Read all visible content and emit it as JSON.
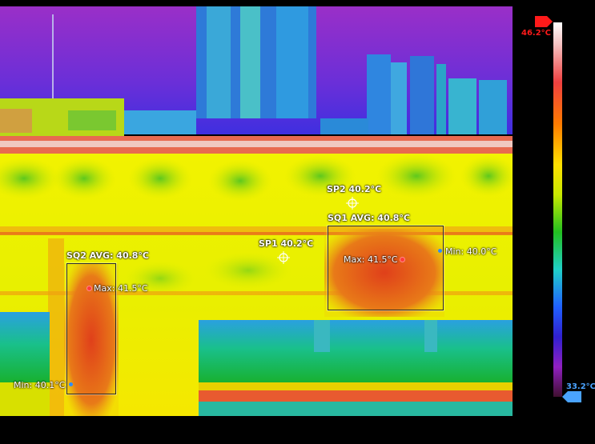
{
  "thermal": {
    "spots": [
      {
        "label": "SP1 40.2°C"
      },
      {
        "label": "SP2 40.2°C"
      }
    ],
    "areas": [
      {
        "label": "SQ1 AVG: 40.8°C",
        "max": "Max: 41.5°C",
        "min": "Min: 40.0°C"
      },
      {
        "label": "SQ2 AVG: 40.8°C",
        "max": "Max: 41.5°C",
        "min": "Min: 40.1°C"
      }
    ]
  },
  "scale": {
    "max_label": "46.2°C",
    "min_label": "33.2°C",
    "max_color": "#ff1a1a",
    "min_color": "#4aa3ff"
  },
  "colors": {
    "max_dot": "#ff3b3b",
    "min_dot": "#2f8cff"
  }
}
